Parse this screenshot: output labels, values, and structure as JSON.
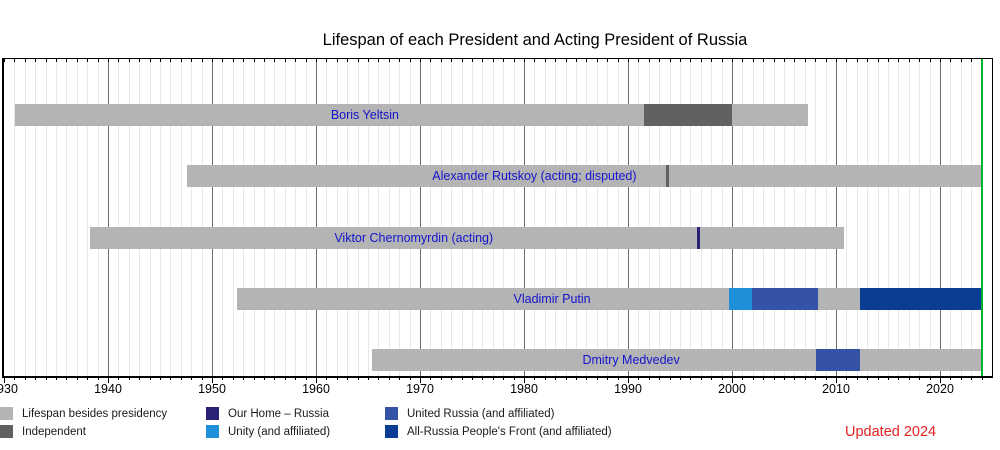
{
  "title": "Lifespan of each President and Acting President of Russia",
  "updated_label": "Updated 2024",
  "colors": {
    "lifespan": "#b4b4b4",
    "independent": "#616161",
    "our_home_russia": "#2a2277",
    "unity": "#1e8fd8",
    "united_russia": "#3553a6",
    "onf": "#0b3d94",
    "bar_label": "#1414cc",
    "now_line": "#00b32a",
    "updated_text": "#e32222",
    "grid_minor": "#e7e7e7",
    "grid_major": "#6e6e6e"
  },
  "chart_data": {
    "type": "bar",
    "subtype": "timeline-gantt",
    "title": "Lifespan of each President and Acting President of Russia",
    "x_axis": {
      "min": 1930,
      "max": 2025,
      "major_ticks": [
        1930,
        1940,
        1950,
        1960,
        1970,
        1980,
        1990,
        2000,
        2010,
        2020
      ],
      "major_tick_labels": [
        "1930",
        "1940",
        "1950",
        "1960",
        "1970",
        "1980",
        "1990",
        "2000",
        "2010",
        "2020"
      ],
      "minor_tick_step": 1,
      "grid": true,
      "now_marker_year": 2024
    },
    "rows": [
      {
        "name": "Boris Yeltsin",
        "label_year": 1964.7,
        "segments": [
          {
            "from": 1931.1,
            "to": 1991.5,
            "party": "lifespan"
          },
          {
            "from": 1991.5,
            "to": 2000.0,
            "party": "independent"
          },
          {
            "from": 2000.0,
            "to": 2007.3,
            "party": "lifespan"
          }
        ]
      },
      {
        "name": "Alexander Rutskoy (acting; disputed)",
        "label_year": 1981.0,
        "segments": [
          {
            "from": 1947.6,
            "to": 1993.7,
            "party": "lifespan"
          },
          {
            "from": 1993.7,
            "to": 1993.95,
            "party": "independent"
          },
          {
            "from": 1993.95,
            "to": 2024.0,
            "party": "lifespan"
          }
        ]
      },
      {
        "name": "Viktor Chernomyrdin (acting)",
        "label_year": 1969.4,
        "segments": [
          {
            "from": 1938.3,
            "to": 1996.6,
            "party": "lifespan"
          },
          {
            "from": 1996.6,
            "to": 1996.9,
            "party": "our_home_russia"
          },
          {
            "from": 1996.9,
            "to": 2010.8,
            "party": "lifespan"
          }
        ]
      },
      {
        "name": "Vladimir Putin",
        "label_year": 1982.7,
        "segments": [
          {
            "from": 1952.4,
            "to": 1999.7,
            "party": "lifespan"
          },
          {
            "from": 1999.7,
            "to": 2001.9,
            "party": "unity"
          },
          {
            "from": 2001.9,
            "to": 2008.3,
            "party": "united_russia"
          },
          {
            "from": 2008.3,
            "to": 2012.3,
            "party": "lifespan"
          },
          {
            "from": 2012.3,
            "to": 2024.0,
            "party": "onf"
          }
        ]
      },
      {
        "name": "Dmitry Medvedev",
        "label_year": 1990.3,
        "segments": [
          {
            "from": 1965.4,
            "to": 2008.1,
            "party": "lifespan"
          },
          {
            "from": 2008.1,
            "to": 2012.3,
            "party": "united_russia"
          },
          {
            "from": 2012.3,
            "to": 2024.0,
            "party": "lifespan"
          }
        ]
      }
    ],
    "legend": {
      "position": "bottom",
      "entries": [
        {
          "label": "Lifespan besides presidency",
          "color_key": "lifespan"
        },
        {
          "label": "Independent",
          "color_key": "independent"
        },
        {
          "label": "Our Home – Russia",
          "color_key": "our_home_russia"
        },
        {
          "label": "Unity (and affiliated)",
          "color_key": "unity"
        },
        {
          "label": "United Russia (and affiliated)",
          "color_key": "united_russia"
        },
        {
          "label": "All-Russia People's Front (and affiliated)",
          "color_key": "onf"
        }
      ]
    }
  }
}
